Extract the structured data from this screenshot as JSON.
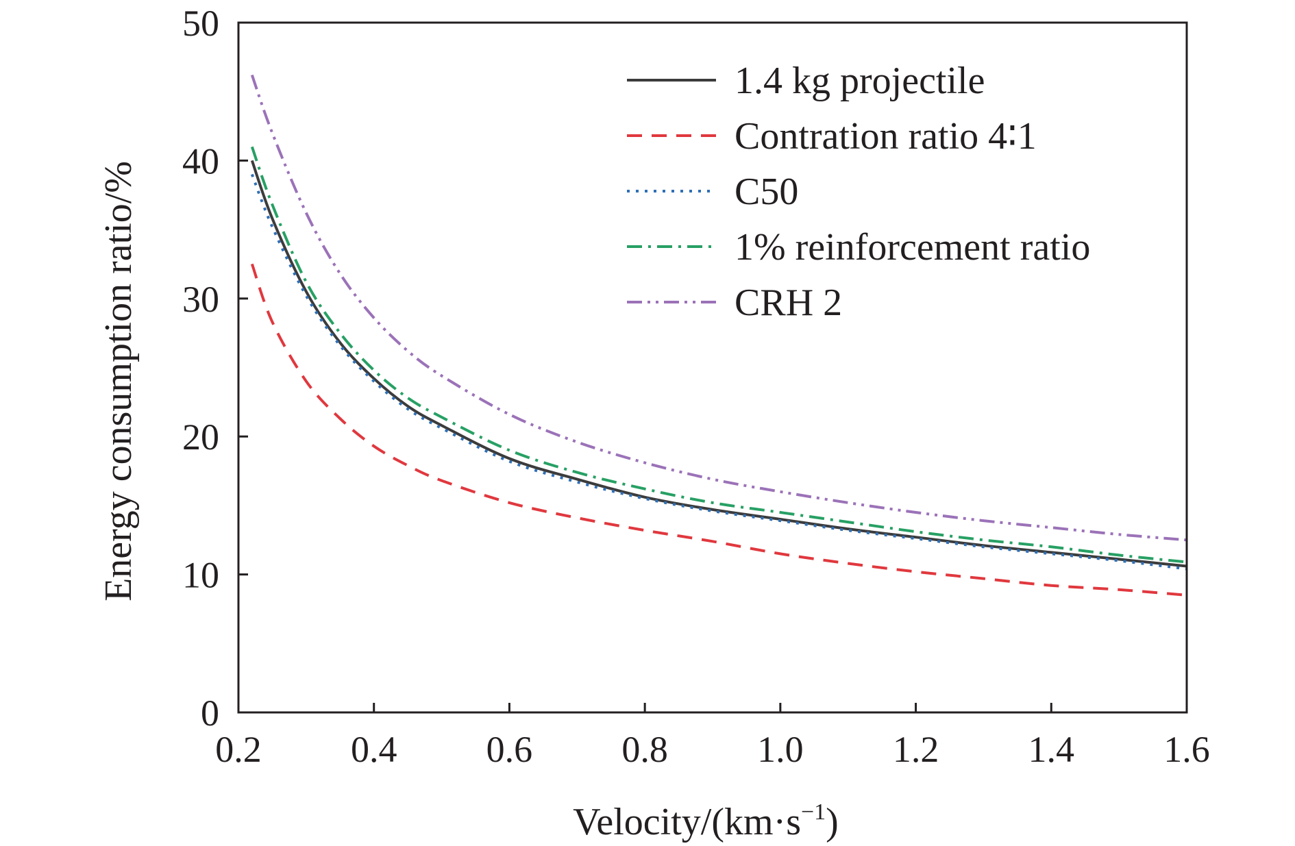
{
  "chart_data": {
    "type": "line",
    "xlabel": "Velocity/(km·s",
    "xlabel_sup": "−1",
    "xlabel_end": ")",
    "ylabel": "Energy consumption ratio/%",
    "xlim": [
      0.2,
      1.6
    ],
    "ylim": [
      0,
      50
    ],
    "xticks": [
      "0.2",
      "0.4",
      "0.6",
      "0.8",
      "1.0",
      "1.2",
      "1.4",
      "1.6"
    ],
    "yticks": [
      "0",
      "10",
      "20",
      "30",
      "40",
      "50"
    ],
    "grid": false,
    "legend_position": "top-right",
    "x": [
      0.22,
      0.25,
      0.3,
      0.35,
      0.4,
      0.45,
      0.5,
      0.6,
      0.7,
      0.8,
      0.9,
      1.0,
      1.1,
      1.2,
      1.3,
      1.4,
      1.5,
      1.6
    ],
    "series": [
      {
        "name": "1.4 kg projectile",
        "color": "#3c3c3c",
        "dash": "solid",
        "values": [
          40.0,
          35.8,
          30.5,
          26.8,
          24.2,
          22.2,
          20.8,
          18.4,
          16.9,
          15.6,
          14.7,
          14.0,
          13.3,
          12.7,
          12.1,
          11.6,
          11.1,
          10.6
        ]
      },
      {
        "name": "Contration ratio 4∶1",
        "color": "#e0383e",
        "dash": "dashed",
        "values": [
          32.5,
          28.3,
          24.0,
          21.3,
          19.3,
          17.9,
          16.8,
          15.2,
          14.1,
          13.2,
          12.4,
          11.5,
          10.8,
          10.2,
          9.7,
          9.2,
          8.9,
          8.5
        ]
      },
      {
        "name": "C50",
        "color": "#2f6fb5",
        "dash": "dotted",
        "values": [
          39.0,
          35.2,
          30.2,
          26.6,
          24.0,
          22.0,
          20.6,
          18.2,
          16.7,
          15.5,
          14.6,
          13.9,
          13.2,
          12.6,
          12.0,
          11.5,
          11.0,
          10.4
        ]
      },
      {
        "name": "1% reinforcement ratio",
        "color": "#27a064",
        "dash": "dashdot",
        "values": [
          41.0,
          36.8,
          31.2,
          27.5,
          24.8,
          22.8,
          21.4,
          19.0,
          17.4,
          16.2,
          15.2,
          14.5,
          13.8,
          13.1,
          12.5,
          12.0,
          11.4,
          10.9
        ]
      },
      {
        "name": "CRH 2",
        "color": "#9b72b8",
        "dash": "dashdotdot",
        "values": [
          46.2,
          42.0,
          36.2,
          31.8,
          28.6,
          26.2,
          24.4,
          21.6,
          19.6,
          18.1,
          16.9,
          16.0,
          15.2,
          14.5,
          13.9,
          13.4,
          12.9,
          12.5
        ]
      }
    ]
  }
}
